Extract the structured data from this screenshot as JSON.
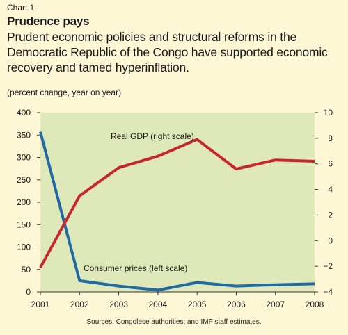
{
  "header": {
    "label": "Chart 1",
    "title": "Prudence pays",
    "subtitle": "Prudent economic policies and structural reforms in the Democratic Republic of the Congo have supported economic recovery and tamed hyperinflation.",
    "units": "(percent change, year on year)"
  },
  "source": "Sources: Congolese authorities; and IMF staff estimates.",
  "colors": {
    "plot_bg": "#dfe8b8",
    "real_gdp": "#c6252f",
    "consumer_prices": "#1f6aa5",
    "page_bg": "#fdf7d6"
  },
  "chart_data": {
    "type": "line",
    "x": [
      "2001",
      "2002",
      "2003",
      "2004",
      "2005",
      "2006",
      "2007",
      "2008"
    ],
    "series": [
      {
        "name": "Consumer prices (left scale)",
        "axis": "left",
        "values": [
          357,
          25,
          13,
          4,
          21,
          13,
          16,
          18
        ]
      },
      {
        "name": "Real GDP (right scale)",
        "axis": "right",
        "values": [
          -2.1,
          3.5,
          5.7,
          6.6,
          7.9,
          5.6,
          6.3,
          6.2
        ]
      }
    ],
    "left_axis": {
      "ylim": [
        0,
        400
      ],
      "ticks": [
        "0",
        "50",
        "100",
        "150",
        "200",
        "250",
        "300",
        "350",
        "400"
      ]
    },
    "right_axis": {
      "ylim": [
        -4,
        10
      ],
      "ticks": [
        "−4",
        "−2",
        "0",
        "2",
        "4",
        "6",
        "8",
        "10"
      ],
      "tick_values": [
        -4,
        -2,
        0,
        2,
        4,
        6,
        8,
        10
      ]
    },
    "grid": false,
    "legend": "inline labels"
  }
}
